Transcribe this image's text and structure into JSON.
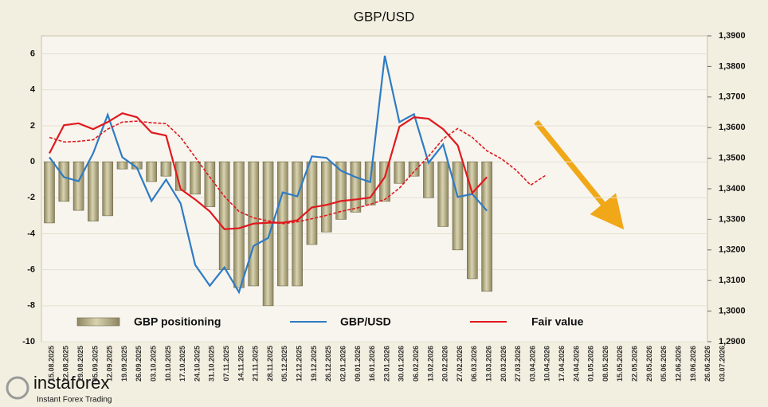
{
  "chart_data": {
    "type": "bar",
    "title": "GBP/USD",
    "categories": [
      "15.08.2025",
      "22.08.2025",
      "29.08.2025",
      "05.09.2025",
      "12.09.2025",
      "19.09.2025",
      "26.09.2025",
      "03.10.2025",
      "10.10.2025",
      "17.10.2025",
      "24.10.2025",
      "31.10.2025",
      "07.11.2025",
      "14.11.2025",
      "21.11.2025",
      "28.11.2025",
      "05.12.2025",
      "12.12.2025",
      "19.12.2025",
      "26.12.2025",
      "02.01.2026",
      "09.01.2026",
      "16.01.2026",
      "23.01.2026",
      "30.01.2026",
      "06.02.2026",
      "13.02.2026",
      "20.02.2026",
      "27.02.2026",
      "06.03.2026",
      "13.03.2026",
      "20.03.2026",
      "27.03.2026",
      "03.04.2026",
      "10.04.2026",
      "17.04.2026",
      "24.04.2026",
      "01.05.2026",
      "08.05.2026",
      "15.05.2026",
      "22.05.2026",
      "29.05.2026",
      "05.06.2026",
      "12.06.2026",
      "19.06.2026",
      "26.06.2026",
      "03.07.2026"
    ],
    "series": [
      {
        "name": "GBP positioning",
        "type": "bar",
        "axis": "y",
        "color": "#b3ac84",
        "values": [
          -3.4,
          -2.2,
          -2.7,
          -3.3,
          -3.0,
          -0.4,
          -0.4,
          -1.1,
          -0.8,
          -1.6,
          -1.8,
          -2.5,
          -6.0,
          -7.0,
          -6.9,
          -8.0,
          -6.9,
          -6.9,
          -4.6,
          -3.9,
          -3.2,
          -2.8,
          -2.4,
          -2.2,
          -1.2,
          -0.8,
          -2.0,
          -3.6,
          -4.9,
          -6.5,
          -7.2,
          null,
          null,
          null,
          null,
          null,
          null,
          null,
          null,
          null,
          null,
          null,
          null,
          null,
          null,
          null,
          null
        ]
      },
      {
        "name": "GBP/USD",
        "type": "line",
        "axis": "y2",
        "color": "#2f7bc4",
        "values": [
          1.3503,
          1.3438,
          1.3425,
          1.3516,
          1.3642,
          1.3503,
          1.3469,
          1.336,
          1.343,
          1.3352,
          1.3151,
          1.3083,
          1.3143,
          1.3062,
          1.3213,
          1.3239,
          1.3388,
          1.3375,
          1.3506,
          1.3501,
          1.3459,
          1.3438,
          1.3422,
          1.3835,
          1.3618,
          1.3644,
          1.3485,
          1.3545,
          1.3373,
          1.3383,
          1.3328,
          null,
          null,
          null,
          null,
          null,
          null,
          null,
          null,
          null,
          null,
          null,
          null,
          null,
          null,
          null,
          null
        ]
      },
      {
        "name": "Fair value",
        "type": "line",
        "axis": "y2",
        "color": "#e0191e",
        "values": [
          1.3516,
          1.3608,
          1.3614,
          1.3595,
          1.3618,
          1.3647,
          1.3634,
          1.3584,
          1.3574,
          1.3399,
          1.3365,
          1.3326,
          1.3268,
          1.3271,
          1.3286,
          1.3289,
          1.3289,
          1.3297,
          1.3339,
          1.3347,
          1.336,
          1.3365,
          1.3371,
          1.3438,
          1.3603,
          1.3634,
          1.3629,
          1.3595,
          1.3542,
          1.3386,
          1.3438,
          null,
          null,
          null,
          null,
          null,
          null,
          null,
          null,
          null,
          null,
          null,
          null,
          null,
          null,
          null,
          null
        ]
      },
      {
        "type": "line",
        "axis": "y2",
        "color": "#e0191e",
        "dashed": true,
        "values": [
          1.3568,
          1.3553,
          1.3555,
          1.356,
          1.3595,
          1.3618,
          1.3621,
          1.3616,
          1.3613,
          1.3568,
          1.3503,
          1.3438,
          1.3375,
          1.3326,
          1.3305,
          1.3295,
          1.3286,
          1.3292,
          1.3302,
          1.3313,
          1.3326,
          1.3336,
          1.3349,
          1.3365,
          1.3402,
          1.3456,
          1.3506,
          1.3563,
          1.3597,
          1.3568,
          1.3524,
          1.3498,
          1.3461,
          1.3412,
          1.3443,
          null,
          null,
          null,
          null,
          null,
          null,
          null,
          null,
          null,
          null,
          null,
          null
        ]
      }
    ],
    "ylim": [
      -10,
      7
    ],
    "yticks": [
      -10,
      -8,
      -6,
      -4,
      -2,
      0,
      2,
      4,
      6
    ],
    "y2lim": [
      1.29,
      1.39
    ],
    "y2ticks": [
      {
        "value": 1.29,
        "label": "1,2900"
      },
      {
        "value": 1.3,
        "label": "1,3000"
      },
      {
        "value": 1.31,
        "label": "1,3100"
      },
      {
        "value": 1.32,
        "label": "1,3200"
      },
      {
        "value": 1.33,
        "label": "1,3300"
      },
      {
        "value": 1.34,
        "label": "1,3400"
      },
      {
        "value": 1.35,
        "label": "1,3500"
      },
      {
        "value": 1.36,
        "label": "1,3600"
      },
      {
        "value": 1.37,
        "label": "1,3700"
      },
      {
        "value": 1.38,
        "label": "1,3800"
      },
      {
        "value": 1.39,
        "label": "1,3900"
      }
    ],
    "grid": true,
    "legend": "bottom"
  },
  "brand": "instaforex",
  "tagline": "Instant Forex Trading"
}
